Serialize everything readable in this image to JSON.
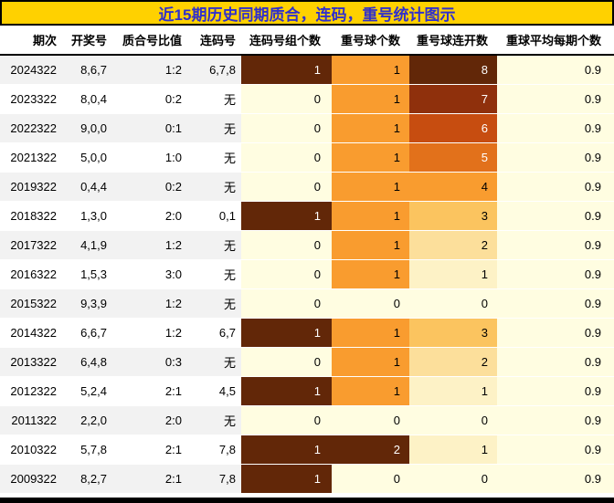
{
  "title": "近15期历史同期质合，连码，重号统计图示",
  "colors": {
    "title_bg": "#FFD100",
    "title_text": "#3030CC",
    "row_odd": "#F2F2F2",
    "row_even": "#FFFFFF",
    "heat_scale": [
      "#FFFDE1",
      "#FDF2C6",
      "#FCDF9B",
      "#FBC45F",
      "#F99C2F",
      "#E2711B",
      "#C74D10",
      "#8F300C",
      "#622708"
    ],
    "heat_text_dark": "#000000",
    "heat_text_light": "#FFFFFF"
  },
  "chart_data": {
    "type": "table",
    "title": "近15期历史同期质合，连码，重号统计图示",
    "legend_position": "none",
    "heatmap_columns": [
      "连码号组个数",
      "重号球个数",
      "重号球连开数"
    ],
    "columns": [
      {
        "label": "期次"
      },
      {
        "label": "开奖号"
      },
      {
        "label": "质合号比值"
      },
      {
        "label": "连码号"
      },
      {
        "label": "连码号组个数",
        "heat_max": 1
      },
      {
        "label": "重号球个数",
        "heat_max": 2
      },
      {
        "label": "重号球连开数",
        "heat_max": 8
      },
      {
        "label": "重球平均每期个数",
        "heat_max": null
      }
    ],
    "rows": [
      [
        "2024322",
        "8,6,7",
        "1:2",
        "6,7,8",
        1,
        1,
        8,
        "0.9"
      ],
      [
        "2023322",
        "8,0,4",
        "0:2",
        "无",
        0,
        1,
        7,
        "0.9"
      ],
      [
        "2022322",
        "9,0,0",
        "0:1",
        "无",
        0,
        1,
        6,
        "0.9"
      ],
      [
        "2021322",
        "5,0,0",
        "1:0",
        "无",
        0,
        1,
        5,
        "0.9"
      ],
      [
        "2019322",
        "0,4,4",
        "0:2",
        "无",
        0,
        1,
        4,
        "0.9"
      ],
      [
        "2018322",
        "1,3,0",
        "2:0",
        "0,1",
        1,
        1,
        3,
        "0.9"
      ],
      [
        "2017322",
        "4,1,9",
        "1:2",
        "无",
        0,
        1,
        2,
        "0.9"
      ],
      [
        "2016322",
        "1,5,3",
        "3:0",
        "无",
        0,
        1,
        1,
        "0.9"
      ],
      [
        "2015322",
        "9,3,9",
        "1:2",
        "无",
        0,
        0,
        0,
        "0.9"
      ],
      [
        "2014322",
        "6,6,7",
        "1:2",
        "6,7",
        1,
        1,
        3,
        "0.9"
      ],
      [
        "2013322",
        "6,4,8",
        "0:3",
        "无",
        0,
        1,
        2,
        "0.9"
      ],
      [
        "2012322",
        "5,2,4",
        "2:1",
        "4,5",
        1,
        1,
        1,
        "0.9"
      ],
      [
        "2011322",
        "2,2,0",
        "2:0",
        "无",
        0,
        0,
        0,
        "0.9"
      ],
      [
        "2010322",
        "5,7,8",
        "2:1",
        "7,8",
        1,
        2,
        1,
        "0.9"
      ],
      [
        "2009322",
        "8,2,7",
        "2:1",
        "7,8",
        1,
        0,
        0,
        "0.9"
      ]
    ]
  }
}
